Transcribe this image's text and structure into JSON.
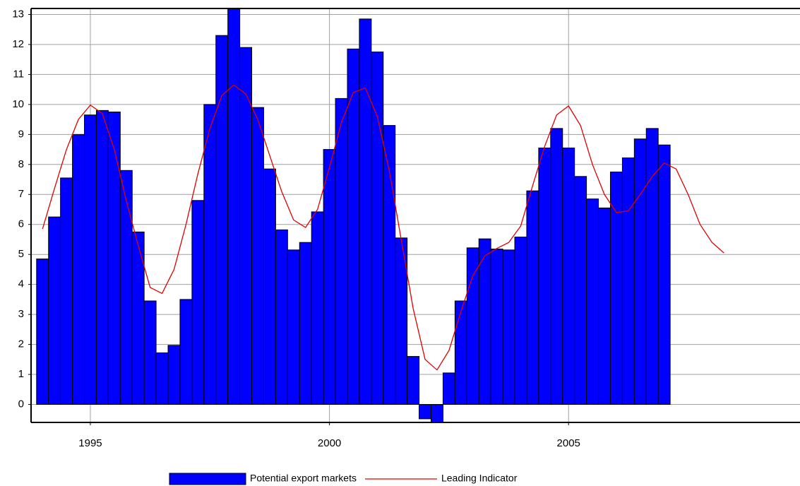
{
  "chart_data": {
    "type": "bar-line",
    "xlim": [
      1993.76,
      2009.84
    ],
    "ylim": [
      -0.6,
      13.2
    ],
    "xticks": [
      1995,
      2000,
      2005
    ],
    "yticks": [
      0,
      1,
      2,
      3,
      4,
      5,
      6,
      7,
      8,
      9,
      10,
      11,
      12,
      13
    ],
    "grid": true,
    "legend": "bottom",
    "series": [
      {
        "name": "Potential export markets",
        "type": "bar",
        "color": "#0000ff",
        "x": [
          1994,
          1994.25,
          1994.5,
          1994.75,
          1995,
          1995.25,
          1995.5,
          1995.75,
          1996,
          1996.25,
          1996.5,
          1996.75,
          1997,
          1997.25,
          1997.5,
          1997.75,
          1998,
          1998.25,
          1998.5,
          1998.75,
          1999,
          1999.25,
          1999.5,
          1999.75,
          2000,
          2000.25,
          2000.5,
          2000.75,
          2001,
          2001.25,
          2001.5,
          2001.75,
          2002,
          2002.25,
          2002.5,
          2002.75,
          2003,
          2003.25,
          2003.5,
          2003.75,
          2004,
          2004.25,
          2004.5,
          2004.75,
          2005,
          2005.25,
          2005.5,
          2005.75,
          2006,
          2006.25,
          2006.5,
          2006.75,
          2007
        ],
        "values": [
          4.85,
          6.25,
          7.55,
          9.0,
          9.65,
          9.8,
          9.75,
          7.8,
          5.75,
          3.45,
          1.72,
          1.97,
          3.5,
          6.8,
          10.0,
          12.3,
          13.3,
          11.9,
          9.9,
          7.85,
          5.82,
          5.15,
          5.4,
          6.42,
          8.5,
          10.2,
          11.85,
          12.85,
          11.75,
          9.3,
          5.55,
          1.6,
          -0.48,
          -0.7,
          1.05,
          3.45,
          5.22,
          5.52,
          5.18,
          5.15,
          5.58,
          7.12,
          8.55,
          9.2,
          8.55,
          7.6,
          6.85,
          6.55,
          7.75,
          8.22,
          8.85,
          9.2,
          8.65
        ]
      },
      {
        "name": "Leading Indicator",
        "type": "line",
        "color": "#e00000",
        "x": [
          1994,
          1994.25,
          1994.5,
          1994.75,
          1995,
          1995.25,
          1995.5,
          1995.75,
          1996,
          1996.25,
          1996.5,
          1996.75,
          1997,
          1997.25,
          1997.5,
          1997.75,
          1998,
          1998.25,
          1998.5,
          1998.75,
          1999,
          1999.25,
          1999.5,
          1999.75,
          2000,
          2000.25,
          2000.5,
          2000.75,
          2001,
          2001.25,
          2001.5,
          2001.75,
          2002,
          2002.25,
          2002.5,
          2002.75,
          2003,
          2003.25,
          2003.5,
          2003.75,
          2004,
          2004.25,
          2004.5,
          2004.75,
          2005,
          2005.25,
          2005.5,
          2005.75,
          2006,
          2006.25,
          2006.5,
          2006.75,
          2007,
          2007.25,
          2007.5,
          2007.75,
          2008,
          2008.25
        ],
        "values": [
          5.85,
          7.2,
          8.5,
          9.5,
          9.98,
          9.7,
          8.5,
          6.8,
          5.3,
          3.9,
          3.7,
          4.5,
          6.0,
          7.7,
          9.2,
          10.3,
          10.65,
          10.35,
          9.5,
          8.3,
          7.1,
          6.15,
          5.9,
          6.5,
          7.9,
          9.4,
          10.4,
          10.55,
          9.6,
          7.8,
          5.5,
          3.2,
          1.5,
          1.15,
          1.8,
          3.1,
          4.3,
          4.95,
          5.2,
          5.4,
          5.95,
          7.3,
          8.6,
          9.65,
          9.95,
          9.3,
          8.0,
          7.0,
          6.4,
          6.45,
          7.0,
          7.6,
          8.05,
          7.85,
          7.0,
          6.0,
          5.4,
          5.05
        ]
      }
    ]
  }
}
